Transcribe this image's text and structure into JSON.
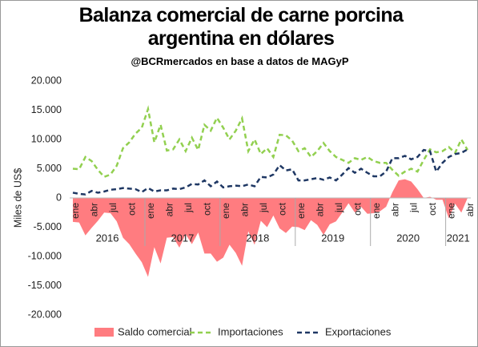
{
  "chart_data": {
    "type": "combo",
    "title": "Balanza comercial de carne porcina argentina en dólares",
    "subtitle": "@BCRmercados en base a datos de MAGyP",
    "y_label": "Miles de US$",
    "categories": [
      "ene",
      null,
      null,
      "abr",
      null,
      null,
      "jul",
      null,
      null,
      "oct",
      null,
      null,
      "ene",
      null,
      null,
      "abr",
      null,
      null,
      "jul",
      null,
      null,
      "oct",
      null,
      null,
      "ene",
      null,
      null,
      "abr",
      null,
      null,
      "jul",
      null,
      null,
      "oct",
      null,
      null,
      "ene",
      null,
      null,
      "abr",
      null,
      null,
      "jul",
      null,
      null,
      "oct",
      null,
      null,
      "ene",
      null,
      null,
      "abr",
      null,
      null,
      "jul",
      null,
      null,
      "oct",
      null,
      null,
      "ene",
      null,
      null,
      "abr"
    ],
    "years": [
      "2016",
      "2017",
      "2018",
      "2019",
      "2020",
      "2021"
    ],
    "ylim": [
      -20000,
      20000
    ],
    "yticks": [
      {
        "value": -20000,
        "label": "-20.000"
      },
      {
        "value": -15000,
        "label": "-15.000"
      },
      {
        "value": -10000,
        "label": "-10.000"
      },
      {
        "value": -5000,
        "label": "-5.000"
      },
      0,
      {
        "value": 5000,
        "label": "5.000"
      },
      {
        "value": 10000,
        "label": "10.000"
      },
      {
        "value": 15000,
        "label": "15.000"
      },
      {
        "value": 20000,
        "label": "20.000"
      }
    ],
    "grid": false,
    "legend": "bottom",
    "series": [
      {
        "name": "Saldo comercial",
        "kind": "area",
        "color": "#ff7c80",
        "values": [
          -4100,
          -4200,
          -6400,
          -5100,
          -3900,
          -2500,
          -2600,
          -4000,
          -6800,
          -7900,
          -9500,
          -11000,
          -13500,
          -8400,
          -11200,
          -6800,
          -6700,
          -8500,
          -6200,
          -7900,
          -5900,
          -9500,
          -9500,
          -10900,
          -10200,
          -8000,
          -9400,
          -11600,
          -5700,
          -8000,
          -3900,
          -5000,
          -3000,
          -5200,
          -6000,
          -4900,
          -5000,
          -5500,
          -3800,
          -4600,
          -6300,
          -4500,
          -4000,
          -2500,
          -900,
          -2500,
          -1500,
          -2700,
          -2600,
          -2300,
          -1500,
          1000,
          3000,
          3200,
          2800,
          1500,
          0,
          200,
          -300,
          -300,
          -3500,
          -1000,
          -2500,
          0
        ]
      },
      {
        "name": "Importaciones",
        "kind": "line",
        "dashed": true,
        "color": "#92d050",
        "values": [
          5000,
          4900,
          7000,
          6300,
          4800,
          3600,
          4000,
          5500,
          8500,
          9500,
          11000,
          12000,
          15200,
          9500,
          12500,
          8100,
          8300,
          10000,
          8000,
          10300,
          8200,
          12500,
          11500,
          13700,
          12000,
          10000,
          11500,
          13600,
          8000,
          10000,
          7500,
          8500,
          7000,
          10800,
          10700,
          9800,
          8000,
          8500,
          7000,
          8000,
          9400,
          8000,
          7000,
          6500,
          6000,
          6800,
          6500,
          7000,
          6300,
          6000,
          6000,
          4800,
          3800,
          4500,
          5000,
          4500,
          6500,
          8300,
          7800,
          8000,
          8700,
          7700,
          10000,
          8200
        ]
      },
      {
        "name": "Exportaciones",
        "kind": "line",
        "dashed": true,
        "color": "#1f3864",
        "values": [
          900,
          700,
          600,
          1200,
          900,
          1100,
          1400,
          1500,
          1700,
          1600,
          1500,
          1000,
          1700,
          1100,
          1300,
          1300,
          1600,
          1500,
          1800,
          2400,
          2300,
          3000,
          2000,
          2800,
          1800,
          2000,
          2100,
          2000,
          2300,
          2000,
          3600,
          3500,
          4000,
          5600,
          4700,
          4900,
          3000,
          3000,
          3200,
          3400,
          3100,
          3500,
          3000,
          4000,
          5100,
          4300,
          5000,
          4300,
          3700,
          3700,
          4500,
          6800,
          6800,
          7200,
          6600,
          7000,
          8200,
          8000,
          4500,
          6000,
          7000,
          7500,
          7700,
          8300
        ]
      }
    ]
  }
}
